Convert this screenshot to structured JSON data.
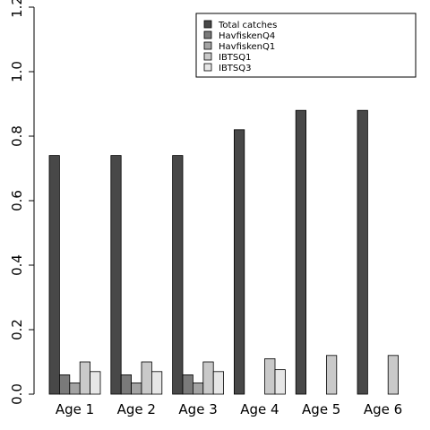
{
  "chart_data": {
    "type": "bar",
    "title": "",
    "xlabel": "",
    "ylabel": "",
    "ylim": [
      0,
      1.2
    ],
    "y_ticks": [
      "0.0",
      "0.2",
      "0.4",
      "0.6",
      "0.8",
      "1.0",
      "1.2"
    ],
    "grid": false,
    "legend_position": "top-right",
    "categories": [
      "Age 1",
      "Age 2",
      "Age 3",
      "Age 4",
      "Age 5",
      "Age 6"
    ],
    "series": [
      {
        "name": "Total catches",
        "color": "#484848",
        "values": [
          0.74,
          0.74,
          0.74,
          0.82,
          0.88,
          0.88
        ]
      },
      {
        "name": "HavfiskenQ4",
        "color": "#7a7a7a",
        "values": [
          0.06,
          0.06,
          0.06,
          0,
          0,
          0
        ]
      },
      {
        "name": "HavfiskenQ1",
        "color": "#a3a3a3",
        "values": [
          0.035,
          0.035,
          0.035,
          0,
          0,
          0
        ]
      },
      {
        "name": "IBTSQ1",
        "color": "#c9c9c9",
        "values": [
          0.1,
          0.1,
          0.1,
          0.11,
          0.12,
          0.12
        ]
      },
      {
        "name": "IBTSQ3",
        "color": "#e6e6e6",
        "values": [
          0.07,
          0.07,
          0.07,
          0.076,
          0,
          0
        ]
      }
    ]
  }
}
